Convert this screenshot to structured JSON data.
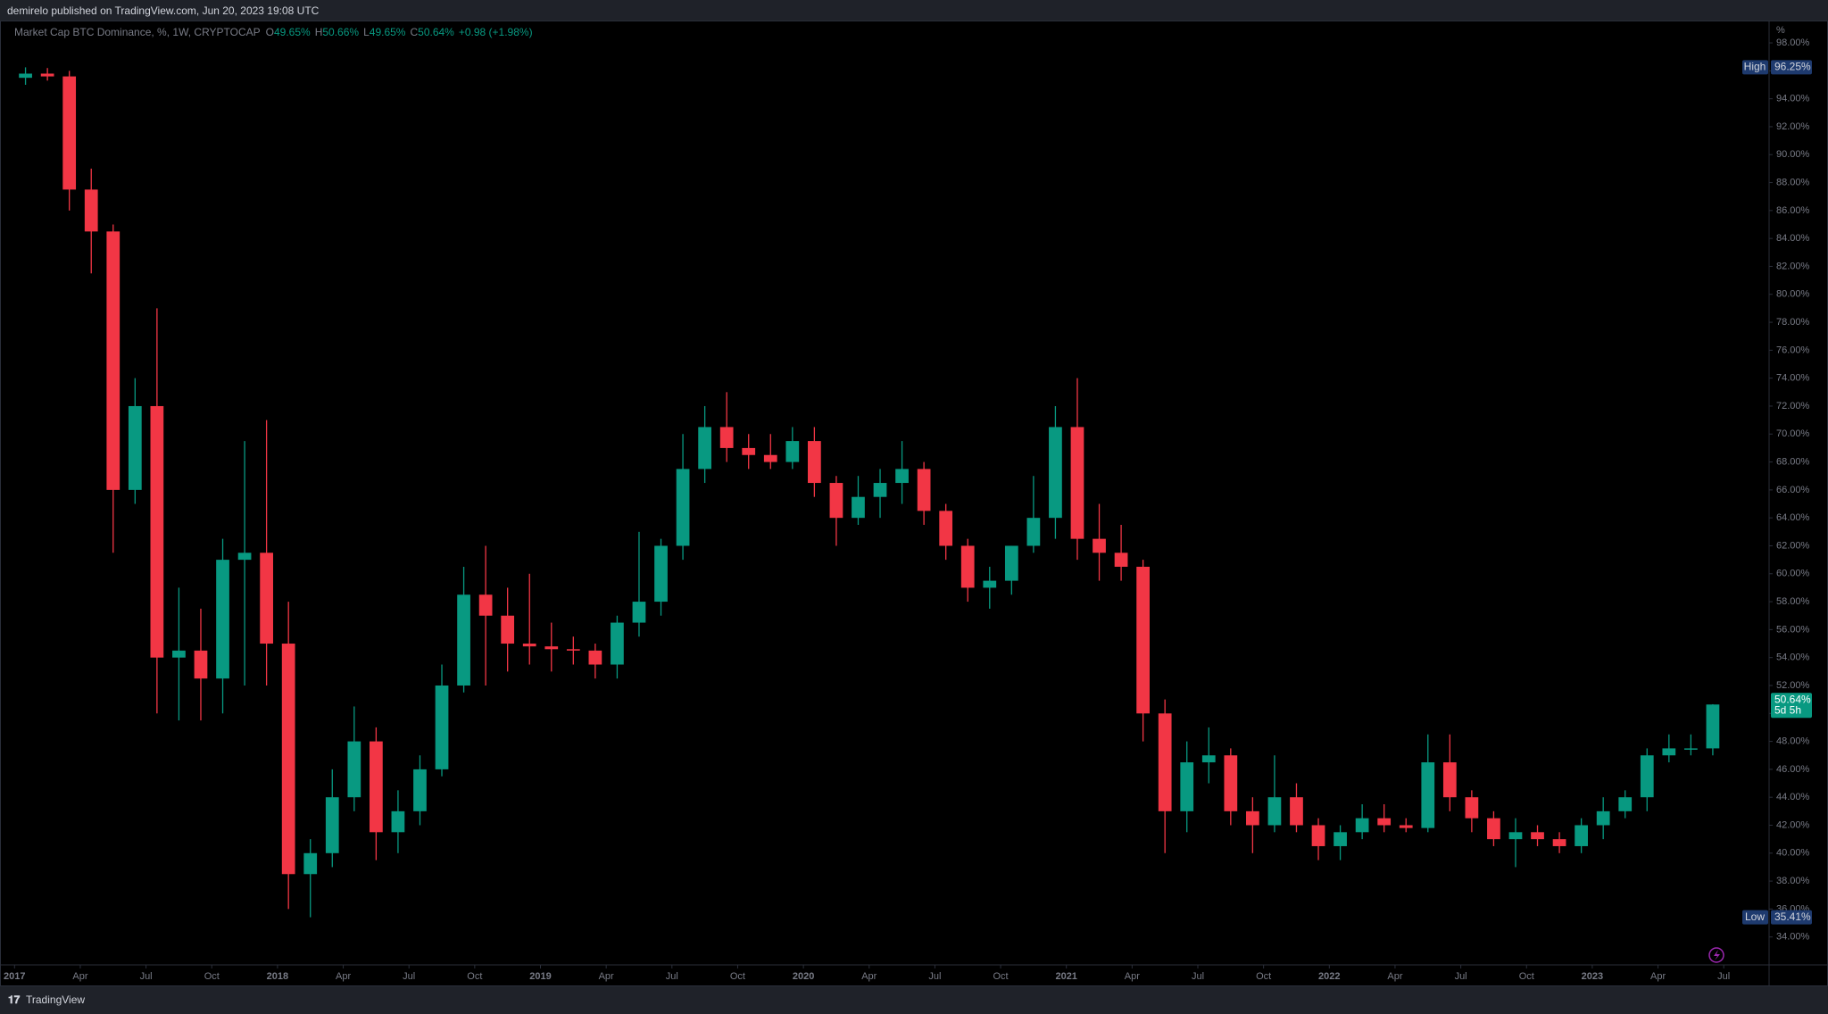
{
  "header": {
    "publisher": "demirelo published on TradingView.com, Jun 20, 2023 19:08 UTC",
    "brand": "TradingView"
  },
  "chart_data": {
    "type": "candlestick",
    "title": "Market Cap BTC Dominance, %, 1W, CRYPTOCAP",
    "ohlc_legend": [
      {
        "label": "O",
        "value": "49.65%"
      },
      {
        "label": "H",
        "value": "50.66%"
      },
      {
        "label": "L",
        "value": "49.65%"
      },
      {
        "label": "C",
        "value": "50.64%"
      }
    ],
    "change": "+0.98 (+1.98%)",
    "y_unit": "%",
    "up_color": "#089981",
    "down_color": "#f23645",
    "grid": false,
    "x": [
      "2017-01",
      "2017-02",
      "2017-03",
      "2017-04",
      "2017-05",
      "2017-06",
      "2017-07",
      "2017-08",
      "2017-09",
      "2017-10",
      "2017-11",
      "2017-12",
      "2018-01",
      "2018-02",
      "2018-03",
      "2018-04",
      "2018-05",
      "2018-06",
      "2018-07",
      "2018-08",
      "2018-09",
      "2018-10",
      "2018-11",
      "2018-12",
      "2019-01",
      "2019-02",
      "2019-03",
      "2019-04",
      "2019-05",
      "2019-06",
      "2019-07",
      "2019-08",
      "2019-09",
      "2019-10",
      "2019-11",
      "2019-12",
      "2020-01",
      "2020-02",
      "2020-03",
      "2020-04",
      "2020-05",
      "2020-06",
      "2020-07",
      "2020-08",
      "2020-09",
      "2020-10",
      "2020-11",
      "2020-12",
      "2021-01",
      "2021-02",
      "2021-03",
      "2021-04",
      "2021-05",
      "2021-06",
      "2021-07",
      "2021-08",
      "2021-09",
      "2021-10",
      "2021-11",
      "2021-12",
      "2022-01",
      "2022-02",
      "2022-03",
      "2022-04",
      "2022-05",
      "2022-06",
      "2022-07",
      "2022-08",
      "2022-09",
      "2022-10",
      "2022-11",
      "2022-12",
      "2023-01",
      "2023-02",
      "2023-03",
      "2023-04",
      "2023-05",
      "2023-06"
    ],
    "open": [
      95.5,
      95.8,
      95.6,
      87.5,
      84.5,
      66,
      72,
      54,
      54.5,
      52.5,
      61,
      61.5,
      55,
      38.5,
      40,
      44,
      48,
      41.5,
      43,
      46,
      52,
      58.5,
      57,
      55,
      54.8,
      54.6,
      54.5,
      53.5,
      56.5,
      58,
      62,
      67.5,
      70.5,
      69,
      68.5,
      68,
      69.5,
      66.5,
      64,
      65.5,
      66.5,
      67.5,
      64.5,
      62,
      59,
      59.5,
      62,
      64,
      70.5,
      62.5,
      61.5,
      60.5,
      50,
      43,
      46.5,
      47,
      43,
      42,
      44,
      42,
      40.5,
      41.5,
      42.5,
      42,
      41.8,
      46.5,
      44,
      42.5,
      41,
      41.5,
      41,
      40.5,
      42,
      43,
      44,
      47,
      47.5,
      47.5
    ],
    "high": [
      96.25,
      96.2,
      96,
      89,
      85,
      74,
      79,
      59,
      57.5,
      62.5,
      69.5,
      71,
      58,
      41,
      46,
      50.5,
      49,
      44.5,
      47,
      53.5,
      60.5,
      62,
      59,
      60,
      56.5,
      55.5,
      55,
      57,
      63,
      62.5,
      70,
      72,
      73,
      70,
      70,
      70.5,
      70.5,
      67,
      67,
      67.5,
      69.5,
      68,
      65,
      62.5,
      60.5,
      62,
      67,
      72,
      74,
      65,
      63.5,
      61,
      51,
      48,
      49,
      47.5,
      44,
      47,
      45,
      42.5,
      42,
      43.5,
      43.5,
      42.5,
      48.5,
      48.5,
      44.5,
      43,
      42.5,
      42,
      41.5,
      42.5,
      44,
      44.5,
      47.5,
      48.5,
      48.5,
      50.66
    ],
    "low": [
      95,
      95.3,
      86,
      81.5,
      61.5,
      65,
      50,
      49.5,
      49.5,
      50,
      52,
      52,
      36,
      35.41,
      39,
      43,
      39.5,
      40,
      42,
      45.5,
      51.5,
      52,
      53,
      53.5,
      53,
      53.5,
      52.5,
      52.5,
      55.5,
      57,
      61,
      66.5,
      68,
      67.5,
      67.5,
      67.5,
      65.5,
      62,
      63.5,
      64,
      65,
      63.5,
      61,
      58,
      57.5,
      58.5,
      61.5,
      62.5,
      61,
      59.5,
      59.5,
      48,
      40,
      41.5,
      45,
      42,
      40,
      41.5,
      41.5,
      39.5,
      39.5,
      41,
      41.5,
      41.5,
      41.5,
      43,
      41.5,
      40.5,
      39,
      40.5,
      40,
      40,
      41,
      42.5,
      43,
      46.5,
      47,
      47
    ],
    "close": [
      95.8,
      95.6,
      87.5,
      84.5,
      66,
      72,
      54,
      54.5,
      52.5,
      61,
      61.5,
      55,
      38.5,
      40,
      44,
      48,
      41.5,
      43,
      46,
      52,
      58.5,
      57,
      55,
      54.8,
      54.6,
      54.5,
      53.5,
      56.5,
      58,
      62,
      67.5,
      70.5,
      69,
      68.5,
      68,
      69.5,
      66.5,
      64,
      65.5,
      66.5,
      67.5,
      64.5,
      62,
      59,
      59.5,
      62,
      64,
      70.5,
      62.5,
      61.5,
      60.5,
      50,
      43,
      46.5,
      47,
      43,
      42,
      44,
      42,
      40.5,
      41.5,
      42.5,
      42,
      41.8,
      46.5,
      44,
      42.5,
      41,
      41.5,
      41,
      40.5,
      42,
      43,
      44,
      47,
      47.5,
      47.5,
      50.64
    ],
    "ylim": [
      32,
      99.6
    ],
    "yticks": [
      {
        "value": 34,
        "label": "34.00%"
      },
      {
        "value": 36,
        "label": "36.00%"
      },
      {
        "value": 38,
        "label": "38.00%"
      },
      {
        "value": 40,
        "label": "40.00%"
      },
      {
        "value": 42,
        "label": "42.00%"
      },
      {
        "value": 44,
        "label": "44.00%"
      },
      {
        "value": 46,
        "label": "46.00%"
      },
      {
        "value": 48,
        "label": "48.00%"
      },
      {
        "value": 50,
        "label": "50.00%"
      },
      {
        "value": 52,
        "label": "52.00%"
      },
      {
        "value": 54,
        "label": "54.00%"
      },
      {
        "value": 56,
        "label": "56.00%"
      },
      {
        "value": 58,
        "label": "58.00%"
      },
      {
        "value": 60,
        "label": "60.00%"
      },
      {
        "value": 62,
        "label": "62.00%"
      },
      {
        "value": 64,
        "label": "64.00%"
      },
      {
        "value": 66,
        "label": "66.00%"
      },
      {
        "value": 68,
        "label": "68.00%"
      },
      {
        "value": 70,
        "label": "70.00%"
      },
      {
        "value": 72,
        "label": "72.00%"
      },
      {
        "value": 74,
        "label": "74.00%"
      },
      {
        "value": 76,
        "label": "76.00%"
      },
      {
        "value": 78,
        "label": "78.00%"
      },
      {
        "value": 80,
        "label": "80.00%"
      },
      {
        "value": 82,
        "label": "82.00%"
      },
      {
        "value": 84,
        "label": "84.00%"
      },
      {
        "value": 86,
        "label": "86.00%"
      },
      {
        "value": 88,
        "label": "88.00%"
      },
      {
        "value": 90,
        "label": "90.00%"
      },
      {
        "value": 92,
        "label": "92.00%"
      },
      {
        "value": 94,
        "label": "94.00%"
      },
      {
        "value": 96,
        "label": "96.00%"
      },
      {
        "value": 98,
        "label": "98.00%"
      }
    ],
    "xticks": [
      {
        "value": "2017-01",
        "label": "2017"
      },
      {
        "value": "2017-04",
        "label": "Apr"
      },
      {
        "value": "2017-07",
        "label": "Jul"
      },
      {
        "value": "2017-10",
        "label": "Oct"
      },
      {
        "value": "2018-01",
        "label": "2018"
      },
      {
        "value": "2018-04",
        "label": "Apr"
      },
      {
        "value": "2018-07",
        "label": "Jul"
      },
      {
        "value": "2018-10",
        "label": "Oct"
      },
      {
        "value": "2019-01",
        "label": "2019"
      },
      {
        "value": "2019-04",
        "label": "Apr"
      },
      {
        "value": "2019-07",
        "label": "Jul"
      },
      {
        "value": "2019-10",
        "label": "Oct"
      },
      {
        "value": "2020-01",
        "label": "2020"
      },
      {
        "value": "2020-04",
        "label": "Apr"
      },
      {
        "value": "2020-07",
        "label": "Jul"
      },
      {
        "value": "2020-10",
        "label": "Oct"
      },
      {
        "value": "2021-01",
        "label": "2021"
      },
      {
        "value": "2021-04",
        "label": "Apr"
      },
      {
        "value": "2021-07",
        "label": "Jul"
      },
      {
        "value": "2021-10",
        "label": "Oct"
      },
      {
        "value": "2022-01",
        "label": "2022"
      },
      {
        "value": "2022-04",
        "label": "Apr"
      },
      {
        "value": "2022-07",
        "label": "Jul"
      },
      {
        "value": "2022-10",
        "label": "Oct"
      },
      {
        "value": "2023-01",
        "label": "2023"
      },
      {
        "value": "2023-04",
        "label": "Apr"
      },
      {
        "value": "2023-07",
        "label": "Jul"
      }
    ],
    "high_marker": {
      "label": "High",
      "value": 96.25,
      "value_label": "96.25%"
    },
    "low_marker": {
      "label": "Low",
      "value": 35.41,
      "value_label": "35.41%"
    },
    "last_price": {
      "value": 50.64,
      "value_label": "50.64%",
      "countdown": "5d 5h"
    }
  }
}
